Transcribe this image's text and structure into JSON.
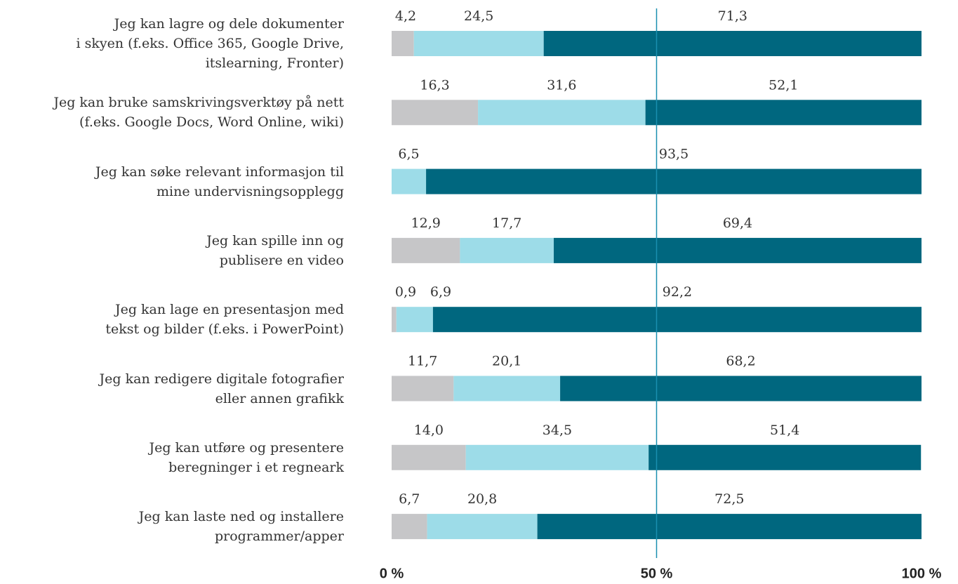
{
  "chart_data": {
    "type": "stacked_barh",
    "categories": [
      "Jeg kan lagre og dele dokumenter\ni skyen (f.eks. Office 365, Google Drive,\nitslearning, Fronter)",
      "Jeg kan bruke samskrivingsverktøy på nett\n(f.eks. Google Docs, Word Online, wiki)",
      "Jeg kan søke relevant informasjon til\nmine undervisningsopplegg",
      "Jeg kan spille inn og\npublisere en video",
      "Jeg kan lage en presentasjon med\ntekst og bilder (f.eks. i PowerPoint)",
      "Jeg kan redigere digitale fotografier\neller annen grafikk",
      "Jeg kan utføre og presentere\nberegninger i et regneark",
      "Jeg kan laste ned og installere\nprogrammer/apper"
    ],
    "series": [
      {
        "color": "#c6c6c8",
        "values": [
          4.2,
          16.3,
          null,
          12.9,
          0.9,
          11.7,
          14.0,
          6.7
        ],
        "value_labels": [
          "4,2",
          "16,3",
          null,
          "12,9",
          "0,9",
          "11,7",
          "14,0",
          "6,7"
        ]
      },
      {
        "color": "#9ddce8",
        "values": [
          24.5,
          31.6,
          6.5,
          17.7,
          6.9,
          20.1,
          34.5,
          20.8
        ],
        "value_labels": [
          "24,5",
          "31,6",
          "6,5",
          "17,7",
          "6,9",
          "20,1",
          "34,5",
          "20,8"
        ]
      },
      {
        "color": "#00677f",
        "values": [
          71.3,
          52.1,
          93.5,
          69.4,
          92.2,
          68.2,
          51.4,
          72.5
        ],
        "value_labels": [
          "71,3",
          "52,1",
          "93,5",
          "69,4",
          "92,2",
          "68,2",
          "51,4",
          "72,5"
        ]
      }
    ],
    "xlim": [
      0,
      100
    ],
    "xticks": [
      {
        "value": 0,
        "label": "0 %"
      },
      {
        "value": 50,
        "label": "50 %"
      },
      {
        "value": 100,
        "label": "100 %"
      }
    ],
    "reference_line": 50,
    "reference_line_color": "#1a8fb0"
  }
}
